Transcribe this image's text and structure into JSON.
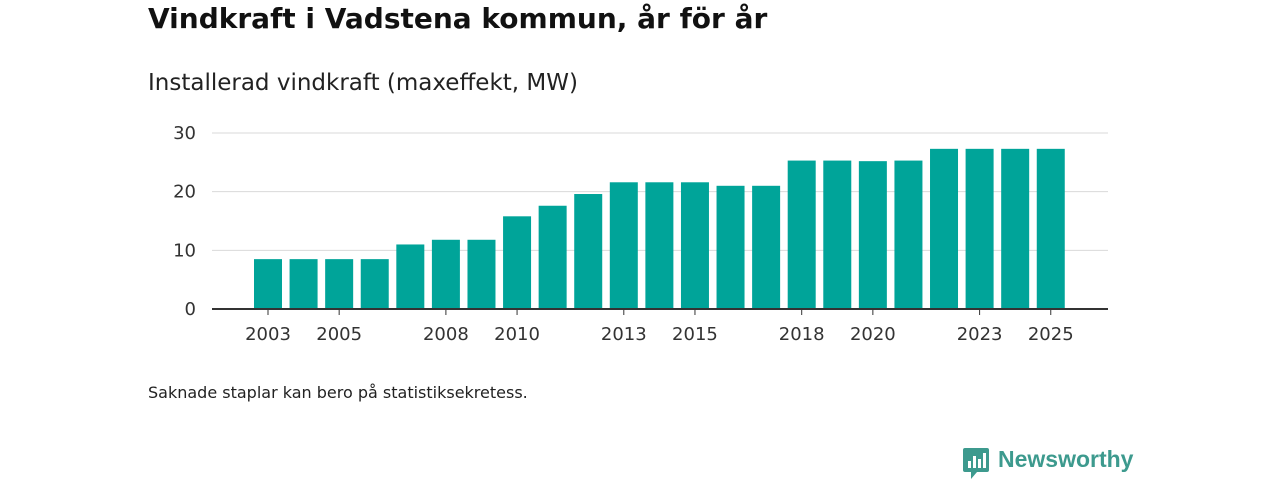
{
  "title": "Vindkraft i Vadstena kommun, år för år",
  "subtitle": "Installerad vindkraft (maxeffekt, MW)",
  "note": "Saknade staplar kan bero på statistiksekretess.",
  "brand": {
    "name": "Newsworthy",
    "icon": "newsworthy-logo-icon",
    "color": "#3d9a8e"
  },
  "colors": {
    "bar": "#00a499",
    "grid": "#d9d9d9",
    "axis": "#333333"
  },
  "chart_data": {
    "type": "bar",
    "title": "Vindkraft i Vadstena kommun, år för år",
    "subtitle": "Installerad vindkraft (maxeffekt, MW)",
    "xlabel": "",
    "ylabel": "",
    "ylim": [
      0,
      30
    ],
    "yticks": [
      0,
      10,
      20,
      30
    ],
    "grid": true,
    "categories": [
      "2003",
      "2004",
      "2005",
      "2006",
      "2007",
      "2008",
      "2009",
      "2010",
      "2011",
      "2012",
      "2013",
      "2014",
      "2015",
      "2016",
      "2017",
      "2018",
      "2019",
      "2020",
      "2021",
      "2022",
      "2023",
      "2024",
      "2025"
    ],
    "xtick_labels": [
      "2003",
      "2005",
      "2008",
      "2010",
      "2013",
      "2015",
      "2018",
      "2020",
      "2023",
      "2025"
    ],
    "values": [
      8.5,
      8.5,
      8.5,
      8.5,
      11,
      11.8,
      11.8,
      15.8,
      17.6,
      19.6,
      21.6,
      21.6,
      21.6,
      21.0,
      21.0,
      25.3,
      25.3,
      25.2,
      25.3,
      27.3,
      27.3,
      27.3,
      27.3
    ]
  }
}
